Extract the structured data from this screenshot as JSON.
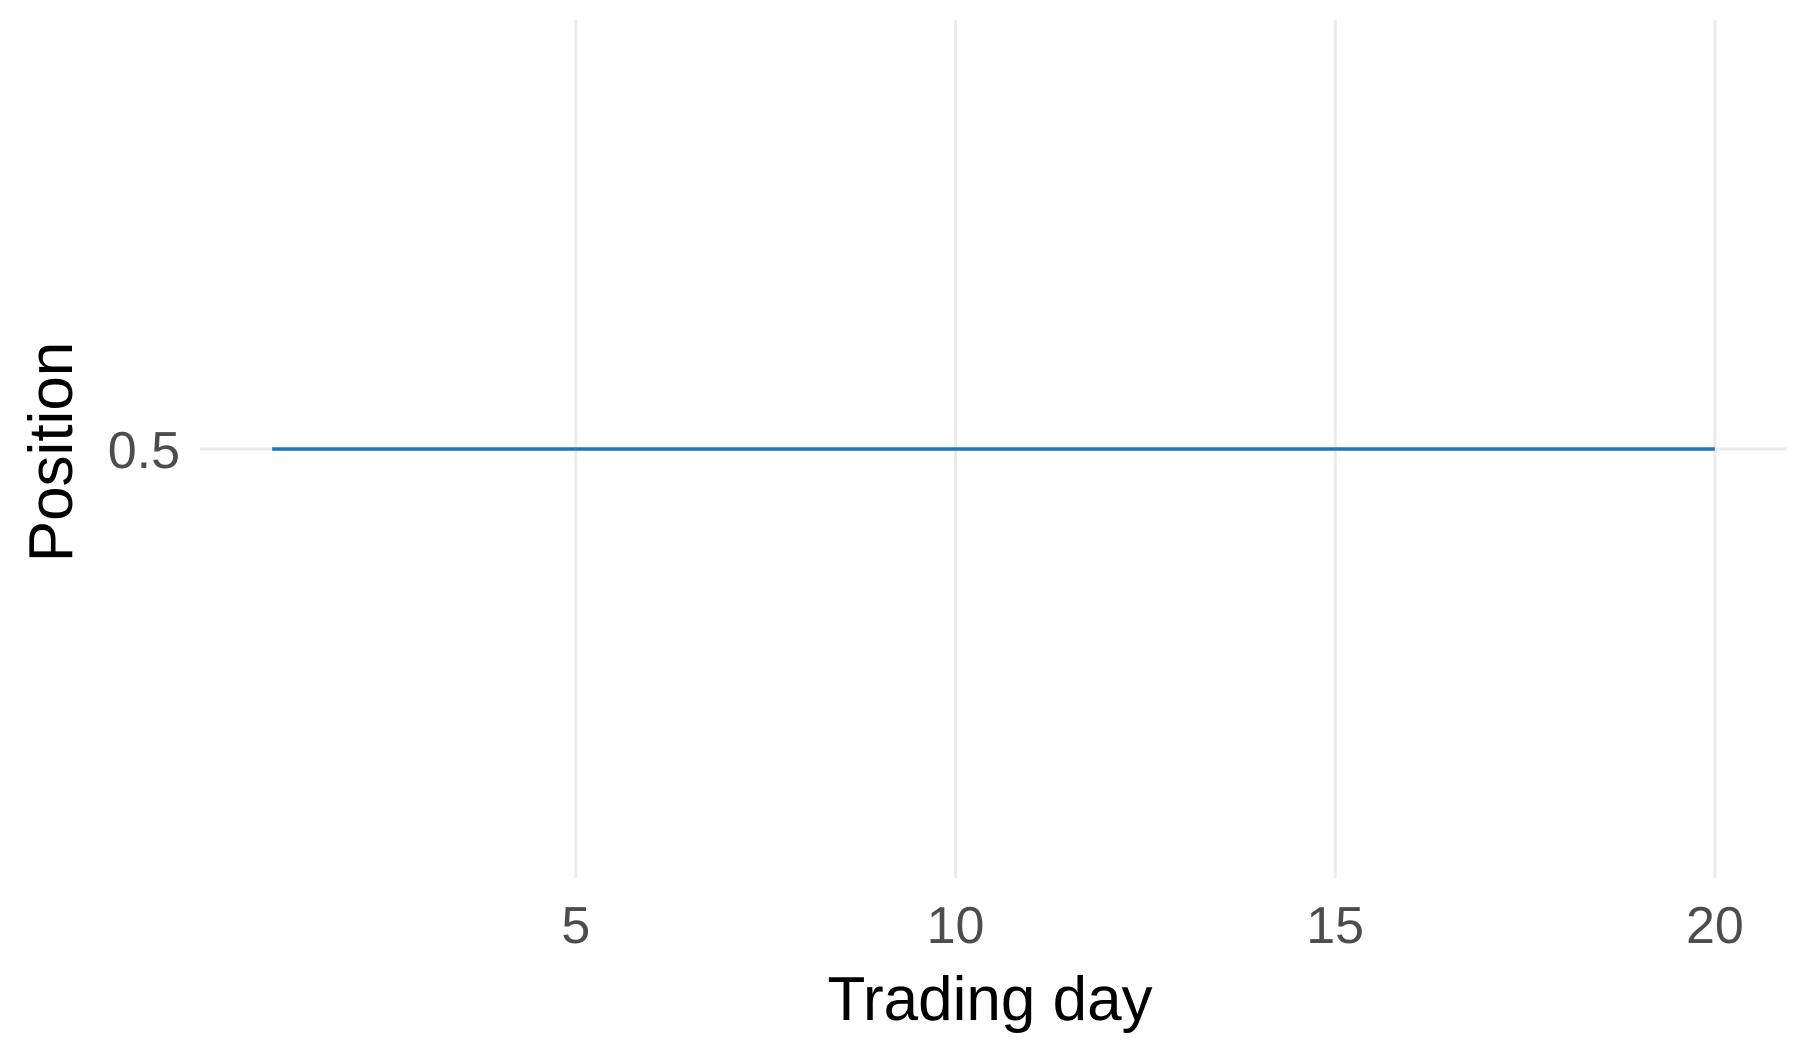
{
  "chart_data": {
    "type": "line",
    "title": "",
    "xlabel": "Trading day",
    "ylabel": "Position",
    "x_ticks": [
      5,
      10,
      15,
      20
    ],
    "y_ticks": [
      0.5
    ],
    "xlim": [
      1,
      20
    ],
    "grid": true,
    "legend": "none",
    "series": [
      {
        "color": "#1f77b4",
        "x": [
          1,
          2,
          3,
          4,
          5,
          6,
          7,
          8,
          9,
          10,
          11,
          12,
          13,
          14,
          15,
          16,
          17,
          18,
          19,
          20
        ],
        "y": [
          0.5,
          0.5,
          0.5,
          0.5,
          0.5,
          0.5,
          0.5,
          0.5,
          0.5,
          0.5,
          0.5,
          0.5,
          0.5,
          0.5,
          0.5,
          0.5,
          0.5,
          0.5,
          0.5,
          0.5
        ]
      }
    ]
  }
}
